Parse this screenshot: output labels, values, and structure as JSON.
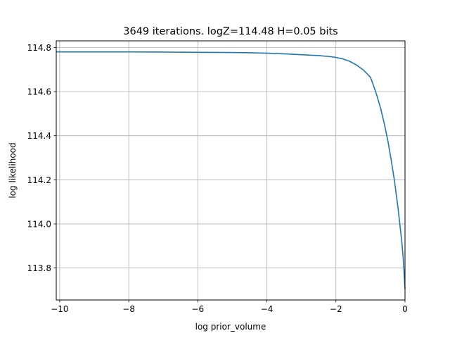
{
  "chart_data": {
    "type": "line",
    "title": "3649 iterations. logZ=114.48 H=0.05 bits",
    "xlabel": "log prior_volume",
    "ylabel": "log likelihood",
    "xlim": [
      -10.1,
      0.0
    ],
    "ylim": [
      113.655,
      114.83
    ],
    "xticks": [
      -10,
      -8,
      -6,
      -4,
      -2,
      0
    ],
    "xtick_labels": [
      "−10",
      "−8",
      "−6",
      "−4",
      "−2",
      "0"
    ],
    "yticks": [
      113.8,
      114.0,
      114.2,
      114.4,
      114.6,
      114.8
    ],
    "ytick_labels": [
      "113.8",
      "114.0",
      "114.2",
      "114.4",
      "114.6",
      "114.8"
    ],
    "grid": true,
    "color": "#1f77b4",
    "series": [
      {
        "x": [
          -10.1,
          -9.0,
          -8.0,
          -7.0,
          -6.0,
          -5.0,
          -4.5,
          -4.0,
          -3.5,
          -3.0,
          -2.5,
          -2.2,
          -2.0,
          -1.8,
          -1.6,
          -1.4,
          -1.2,
          -1.0,
          -0.9,
          -0.8,
          -0.7,
          -0.6,
          -0.5,
          -0.4,
          -0.3,
          -0.2,
          -0.15,
          -0.1,
          -0.06,
          -0.03,
          -0.01,
          0.0
        ],
        "y": [
          114.78,
          114.78,
          114.78,
          114.779,
          114.778,
          114.777,
          114.776,
          114.774,
          114.771,
          114.767,
          114.763,
          114.759,
          114.755,
          114.748,
          114.737,
          114.72,
          114.697,
          114.665,
          114.622,
          114.575,
          114.52,
          114.455,
          114.38,
          114.29,
          114.19,
          114.07,
          113.999,
          113.93,
          113.86,
          113.79,
          113.73,
          113.705
        ]
      }
    ]
  }
}
